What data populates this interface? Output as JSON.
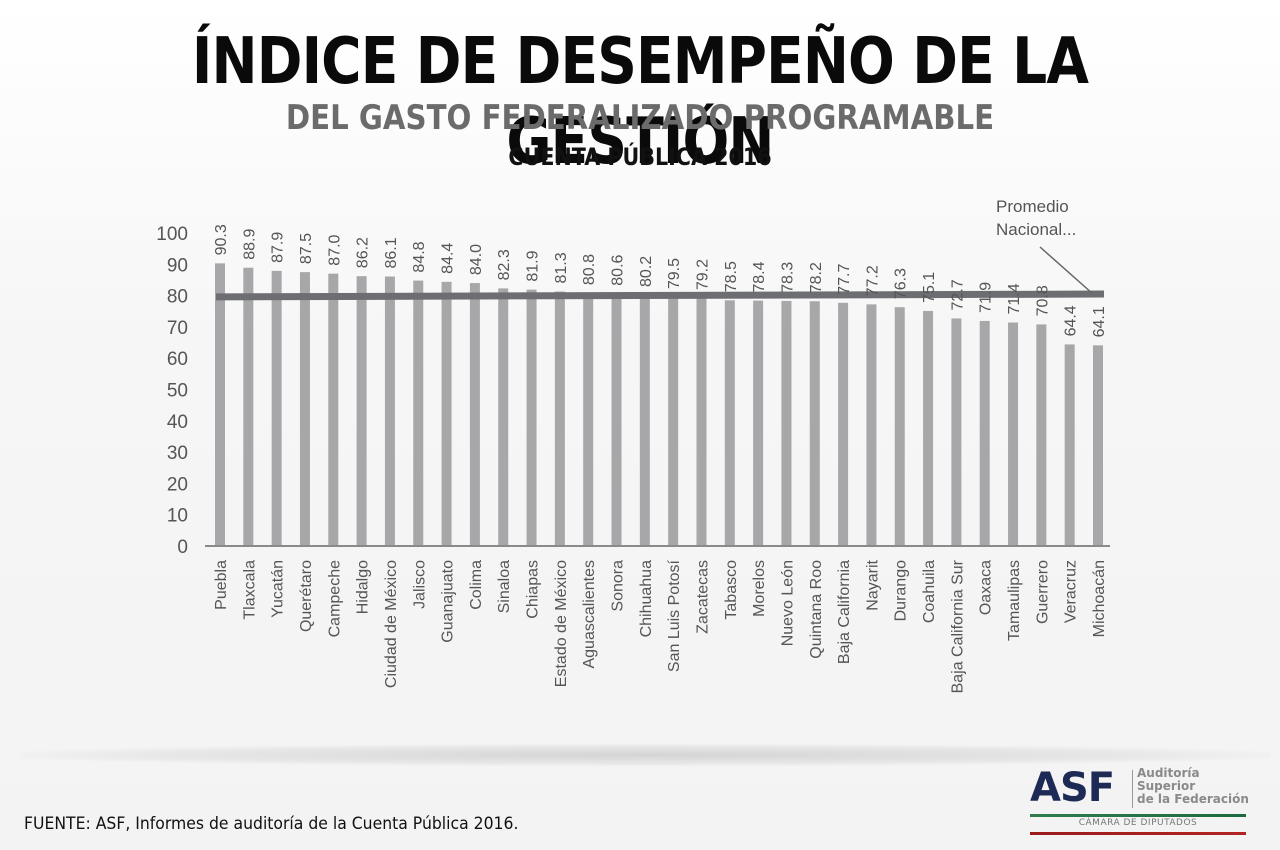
{
  "header": {
    "title": "ÍNDICE DE DESEMPEÑO DE LA GESTIÓN",
    "subtitle": "DEL GASTO FEDERALIZADO PROGRAMABLE",
    "subtitle2": "CUENTA PÚBLICA 2016"
  },
  "footer": {
    "source": "FUENTE: ASF, Informes de auditoría de la Cuenta Pública 2016.",
    "logo": {
      "acronym": "ASF",
      "name_line1": "Auditoría",
      "name_line2": "Superior",
      "name_line3": "de la Federación",
      "camara": "CÁMARA DE DIPUTADOS",
      "green": "#2e7d4f",
      "red": "#a51f1f",
      "navy": "#1c2a55"
    }
  },
  "chart_data": {
    "type": "bar",
    "title": "Índice de Desempeño de la Gestión del Gasto Federalizado Programable — Cuenta Pública 2016",
    "xlabel": "",
    "ylabel": "",
    "ylim": [
      0,
      100
    ],
    "yticks": [
      0,
      10,
      20,
      30,
      40,
      50,
      60,
      70,
      80,
      90,
      100
    ],
    "grid": false,
    "bar_color": "#a7a7aa",
    "categories": [
      "Puebla",
      "Tlaxcala",
      "Yucatán",
      "Querétaro",
      "Campeche",
      "Hidalgo",
      "Ciudad de México",
      "Jalisco",
      "Guanajuato",
      "Colima",
      "Sinaloa",
      "Chiapas",
      "Estado de México",
      "Aguascalientes",
      "Sonora",
      "Chihuahua",
      "San Luis Potosí",
      "Zacatecas",
      "Tabasco",
      "Morelos",
      "Nuevo León",
      "Quintana Roo",
      "Baja California",
      "Nayarit",
      "Durango",
      "Coahuila",
      "Baja California Sur",
      "Oaxaca",
      "Tamaulipas",
      "Guerrero",
      "Veracruz",
      "Michoacán"
    ],
    "values": [
      90.3,
      88.9,
      87.9,
      87.5,
      87.0,
      86.2,
      86.1,
      84.8,
      84.4,
      84.0,
      82.3,
      81.9,
      81.3,
      80.8,
      80.6,
      80.2,
      79.5,
      79.2,
      78.5,
      78.4,
      78.3,
      78.2,
      77.7,
      77.2,
      76.3,
      75.1,
      72.7,
      71.9,
      71.4,
      70.8,
      64.4,
      64.1
    ],
    "data_labels": [
      "90.3",
      "88.9",
      "87.9",
      "87.5",
      "87.0",
      "86.2",
      "86.1",
      "84.8",
      "84.4",
      "84.0",
      "82.3",
      "81.9",
      "81.3",
      "80.8",
      "80.6",
      "80.2",
      "79.5",
      "79.2",
      "78.5",
      "78.4",
      "78.3",
      "78.2",
      "77.7",
      "77.2",
      "76.3",
      "75.1",
      "72.7",
      "71.9",
      "71.4",
      "70.8",
      "64.4",
      "64.1"
    ],
    "reference_line": {
      "label": "Promedio Nacional...",
      "label_line1": "Promedio",
      "label_line2": "Nacional...",
      "value_start": 79.6,
      "value_end": 80.5,
      "color": "#6c6e72"
    }
  }
}
